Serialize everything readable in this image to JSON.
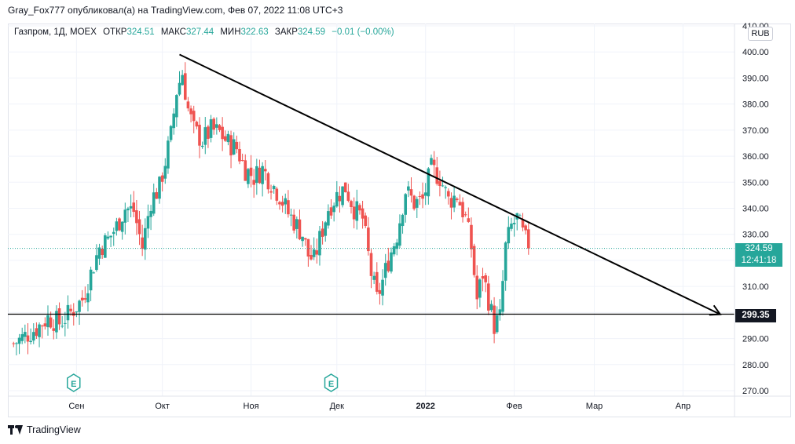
{
  "publisher_line": "Gray_Fox777 опубликовал(а) на TradingView.com, Фев 07, 2022 11:08 UTC+3",
  "legend": {
    "symbol": "Газпром, 1Д, MOEX",
    "open_label": "ОТКР",
    "open": "324.51",
    "high_label": "МАКС",
    "high": "327.44",
    "low_label": "МИН",
    "low": "322.63",
    "close_label": "ЗАКР",
    "close": "324.59",
    "change": "−0.01 (−0.00%)"
  },
  "currency": "RUB",
  "price_tag": {
    "price": "324.59",
    "countdown": "12:41:18"
  },
  "level_tag": "299.35",
  "footer": {
    "brand": "TradingView"
  },
  "colors": {
    "up": "#26a69a",
    "down": "#ef5350",
    "line": "#000000",
    "axis_text": "#131722"
  },
  "chart_data": {
    "type": "candlestick",
    "ylim": [
      268,
      412
    ],
    "y_ticks": [
      "270.00",
      "280.00",
      "290.00",
      "300.00",
      "310.00",
      "320.00",
      "330.00",
      "340.00",
      "350.00",
      "360.00",
      "370.00",
      "380.00",
      "390.00",
      "400.00",
      "410.00"
    ],
    "x_ticks": [
      {
        "label": "Сен",
        "day": 22,
        "bold": false
      },
      {
        "label": "Окт",
        "day": 52,
        "bold": false
      },
      {
        "label": "Ноя",
        "day": 83,
        "bold": false
      },
      {
        "label": "Дек",
        "day": 113,
        "bold": false
      },
      {
        "label": "2022",
        "day": 144,
        "bold": true
      },
      {
        "label": "Фев",
        "day": 175,
        "bold": false
      },
      {
        "label": "Мар",
        "day": 203,
        "bold": false
      },
      {
        "label": "Апр",
        "day": 234,
        "bold": false
      }
    ],
    "x_range": [
      -2,
      252
    ],
    "events": [
      {
        "label": "E",
        "day": 21
      },
      {
        "label": "E",
        "day": 111
      }
    ],
    "horizontal_line": 299.35,
    "trend_line": {
      "from": {
        "day": 58,
        "price": 399
      },
      "to": {
        "day": 247,
        "price": 299.3
      }
    },
    "current_price": 324.59,
    "waypoints": [
      [
        0,
        288
      ],
      [
        4,
        291
      ],
      [
        8,
        294
      ],
      [
        12,
        298
      ],
      [
        16,
        296
      ],
      [
        20,
        300
      ],
      [
        24,
        305
      ],
      [
        27,
        315
      ],
      [
        30,
        325
      ],
      [
        33,
        328
      ],
      [
        36,
        333
      ],
      [
        39,
        340
      ],
      [
        42,
        339
      ],
      [
        45,
        325
      ],
      [
        48,
        343
      ],
      [
        51,
        348
      ],
      [
        53,
        358
      ],
      [
        55,
        368
      ],
      [
        57,
        385
      ],
      [
        59,
        392
      ],
      [
        61,
        378
      ],
      [
        63,
        370
      ],
      [
        66,
        366
      ],
      [
        69,
        370
      ],
      [
        72,
        369
      ],
      [
        75,
        365
      ],
      [
        78,
        363
      ],
      [
        81,
        355
      ],
      [
        84,
        352
      ],
      [
        87,
        355
      ],
      [
        90,
        350
      ],
      [
        93,
        345
      ],
      [
        96,
        338
      ],
      [
        98,
        335
      ],
      [
        101,
        330
      ],
      [
        103,
        322
      ],
      [
        105,
        320
      ],
      [
        107,
        328
      ],
      [
        110,
        340
      ],
      [
        113,
        345
      ],
      [
        116,
        348
      ],
      [
        119,
        340
      ],
      [
        122,
        336
      ],
      [
        125,
        315
      ],
      [
        127,
        305
      ],
      [
        129,
        312
      ],
      [
        131,
        320
      ],
      [
        134,
        330
      ],
      [
        137,
        347
      ],
      [
        140,
        342
      ],
      [
        143,
        343
      ],
      [
        146,
        355
      ],
      [
        149,
        352
      ],
      [
        152,
        343
      ],
      [
        155,
        345
      ],
      [
        158,
        336
      ],
      [
        160,
        325
      ],
      [
        162,
        305
      ],
      [
        164,
        315
      ],
      [
        166,
        305
      ],
      [
        168,
        295
      ],
      [
        170,
        298
      ],
      [
        172,
        325
      ],
      [
        174,
        333
      ],
      [
        176,
        336
      ],
      [
        178,
        330
      ],
      [
        180,
        325
      ]
    ]
  }
}
